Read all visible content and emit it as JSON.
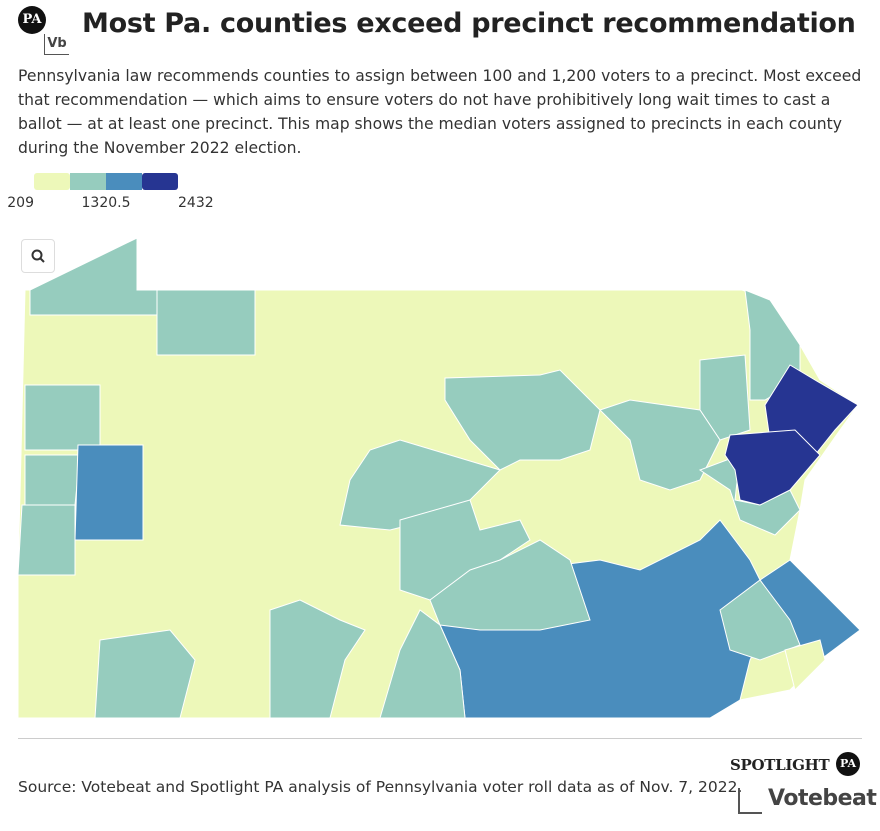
{
  "header": {
    "logo": [
      "PA",
      "Vb"
    ],
    "title": "Most Pa. counties exceed precinct recommendation",
    "description": "Pennsylvania law recommends counties to assign between 100 and 1,200 voters to a precinct. Most exceed that recommendation — which aims to ensure voters do not have prohibitively long wait times to cast a ballot — at at least one precinct. This map shows the median voters assigned to precincts in each county during the November 2022 election."
  },
  "legend": {
    "colors": [
      "#edf8b9",
      "#96ccbe",
      "#4a8dbd",
      "#263592"
    ],
    "ticks": [
      209,
      1320.5,
      2432
    ]
  },
  "footer": {
    "source": "Source: Votebeat and Spotlight PA analysis of Pennsylvania voter roll data as of Nov. 7, 2022.",
    "logos": [
      "SPOTLIGHT",
      "PA",
      "Votebeat"
    ]
  }
}
